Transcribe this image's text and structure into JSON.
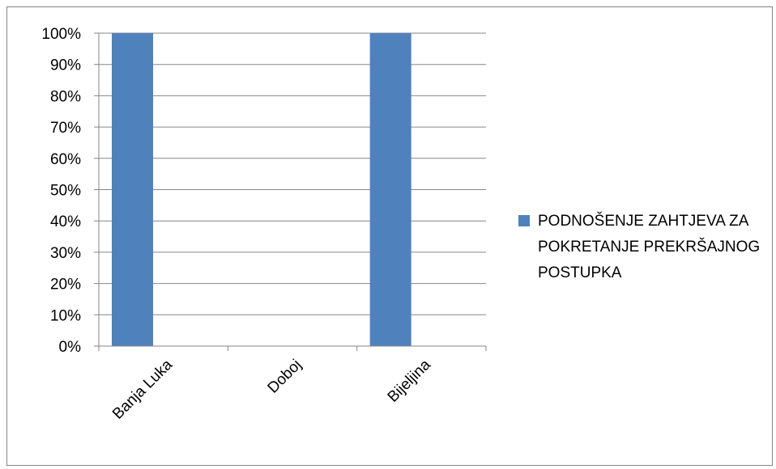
{
  "chart_data": {
    "type": "bar",
    "categories": [
      "Banja Luka",
      "Doboj",
      "Bijeljina"
    ],
    "series": [
      {
        "name": "PODNOŠENJE ZAHTJEVA ZA POKRETANJE PREKRŠAJNOG POSTUPKA",
        "values": [
          100,
          0,
          100
        ]
      }
    ],
    "ylim": [
      0,
      100
    ],
    "yticks": [
      "0%",
      "10%",
      "20%",
      "30%",
      "40%",
      "50%",
      "60%",
      "70%",
      "80%",
      "90%",
      "100%"
    ],
    "grid": true,
    "legend_position": "right",
    "bar_color": "#4F81BD",
    "grid_color": "#868686"
  }
}
